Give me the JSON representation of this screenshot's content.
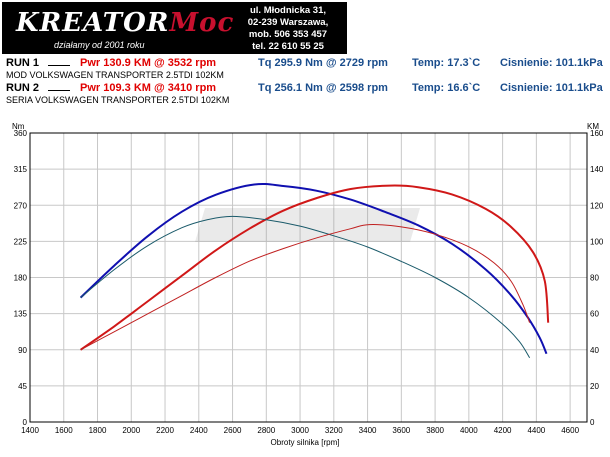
{
  "logo": {
    "word_left": "KREATOR",
    "word_right": "Moc",
    "tagline": "działamy od 2001 roku"
  },
  "address": {
    "line1": "ul. Młodnicka 31,",
    "line2": "02-239  Warszawa,",
    "line3": "mob.  506 353 457",
    "line4": "tel.  22 610 55 25"
  },
  "runs": [
    {
      "label": "RUN 1",
      "pwr": "Pwr  130.9 KM @ 3532 rpm",
      "tq": "Tq 295.9 Nm @ 2729 rpm",
      "temp": "Temp: 17.3`C",
      "pressure": "Cisnienie: 101.1kPa",
      "desc": "MOD VOLKSWAGEN TRANSPORTER 2.5TDI 102KM"
    },
    {
      "label": "RUN 2",
      "pwr": "Pwr  109.3 KM @ 3410 rpm",
      "tq": "Tq 256.1 Nm @ 2598 rpm",
      "temp": "Temp: 16.6`C",
      "pressure": "Cisnienie: 101.1kPa",
      "desc": "SERIA VOLKSWAGEN TRANSPORTER 2.5TDI 102KM"
    }
  ],
  "colors": {
    "run1_torque": "#1010b0",
    "run1_power": "#d01818",
    "run2_torque": "#1a5a6a",
    "run2_power": "#c02020",
    "brand_red": "#c8102e"
  },
  "chart_data": {
    "type": "line",
    "xlabel": "Obroty silnika [rpm]",
    "ylabel_left": "Nm",
    "ylabel_right": "KM",
    "xlim": [
      1400,
      4700
    ],
    "ylim_left": [
      0,
      360
    ],
    "ylim_right": [
      0,
      160
    ],
    "x_ticks": [
      1400,
      1600,
      1800,
      2000,
      2200,
      2400,
      2600,
      2800,
      3000,
      3200,
      3400,
      3600,
      3800,
      4000,
      4200,
      4400,
      4600
    ],
    "y_ticks_left": [
      0,
      45,
      90,
      135,
      180,
      225,
      270,
      315,
      360
    ],
    "y_ticks_right": [
      0,
      20,
      40,
      60,
      80,
      100,
      120,
      140,
      160
    ],
    "grid": true,
    "series": [
      {
        "axis": "left",
        "color": "#1010b0",
        "width": 2,
        "points": [
          [
            1700,
            155
          ],
          [
            1900,
            195
          ],
          [
            2100,
            232
          ],
          [
            2300,
            262
          ],
          [
            2500,
            283
          ],
          [
            2729,
            295.9
          ],
          [
            2900,
            294
          ],
          [
            3100,
            288
          ],
          [
            3300,
            277
          ],
          [
            3500,
            262
          ],
          [
            3700,
            245
          ],
          [
            3900,
            222
          ],
          [
            4100,
            190
          ],
          [
            4250,
            158
          ],
          [
            4350,
            130
          ],
          [
            4420,
            105
          ],
          [
            4460,
            85
          ]
        ]
      },
      {
        "axis": "right",
        "color": "#d01818",
        "width": 2,
        "points": [
          [
            1700,
            40
          ],
          [
            1900,
            53
          ],
          [
            2100,
            67
          ],
          [
            2300,
            81
          ],
          [
            2500,
            95
          ],
          [
            2700,
            107
          ],
          [
            2900,
            117
          ],
          [
            3100,
            124
          ],
          [
            3300,
            129
          ],
          [
            3532,
            130.9
          ],
          [
            3700,
            130
          ],
          [
            3900,
            126
          ],
          [
            4100,
            118
          ],
          [
            4250,
            108
          ],
          [
            4380,
            94
          ],
          [
            4450,
            78
          ],
          [
            4470,
            55
          ]
        ]
      },
      {
        "axis": "left",
        "color": "#1a5a6a",
        "width": 1,
        "points": [
          [
            1700,
            155
          ],
          [
            1900,
            190
          ],
          [
            2100,
            220
          ],
          [
            2300,
            242
          ],
          [
            2450,
            252
          ],
          [
            2598,
            256.1
          ],
          [
            2800,
            252
          ],
          [
            3000,
            244
          ],
          [
            3200,
            232
          ],
          [
            3400,
            218
          ],
          [
            3600,
            200
          ],
          [
            3800,
            180
          ],
          [
            4000,
            155
          ],
          [
            4200,
            122
          ],
          [
            4300,
            100
          ],
          [
            4360,
            80
          ]
        ]
      },
      {
        "axis": "right",
        "color": "#c02020",
        "width": 1,
        "points": [
          [
            1700,
            40
          ],
          [
            1900,
            50
          ],
          [
            2100,
            60
          ],
          [
            2300,
            70
          ],
          [
            2500,
            80
          ],
          [
            2700,
            89
          ],
          [
            2900,
            96
          ],
          [
            3100,
            102
          ],
          [
            3300,
            107
          ],
          [
            3410,
            109.3
          ],
          [
            3600,
            108
          ],
          [
            3800,
            104
          ],
          [
            4000,
            97
          ],
          [
            4150,
            88
          ],
          [
            4250,
            78
          ],
          [
            4320,
            65
          ],
          [
            4360,
            55
          ]
        ]
      }
    ]
  }
}
